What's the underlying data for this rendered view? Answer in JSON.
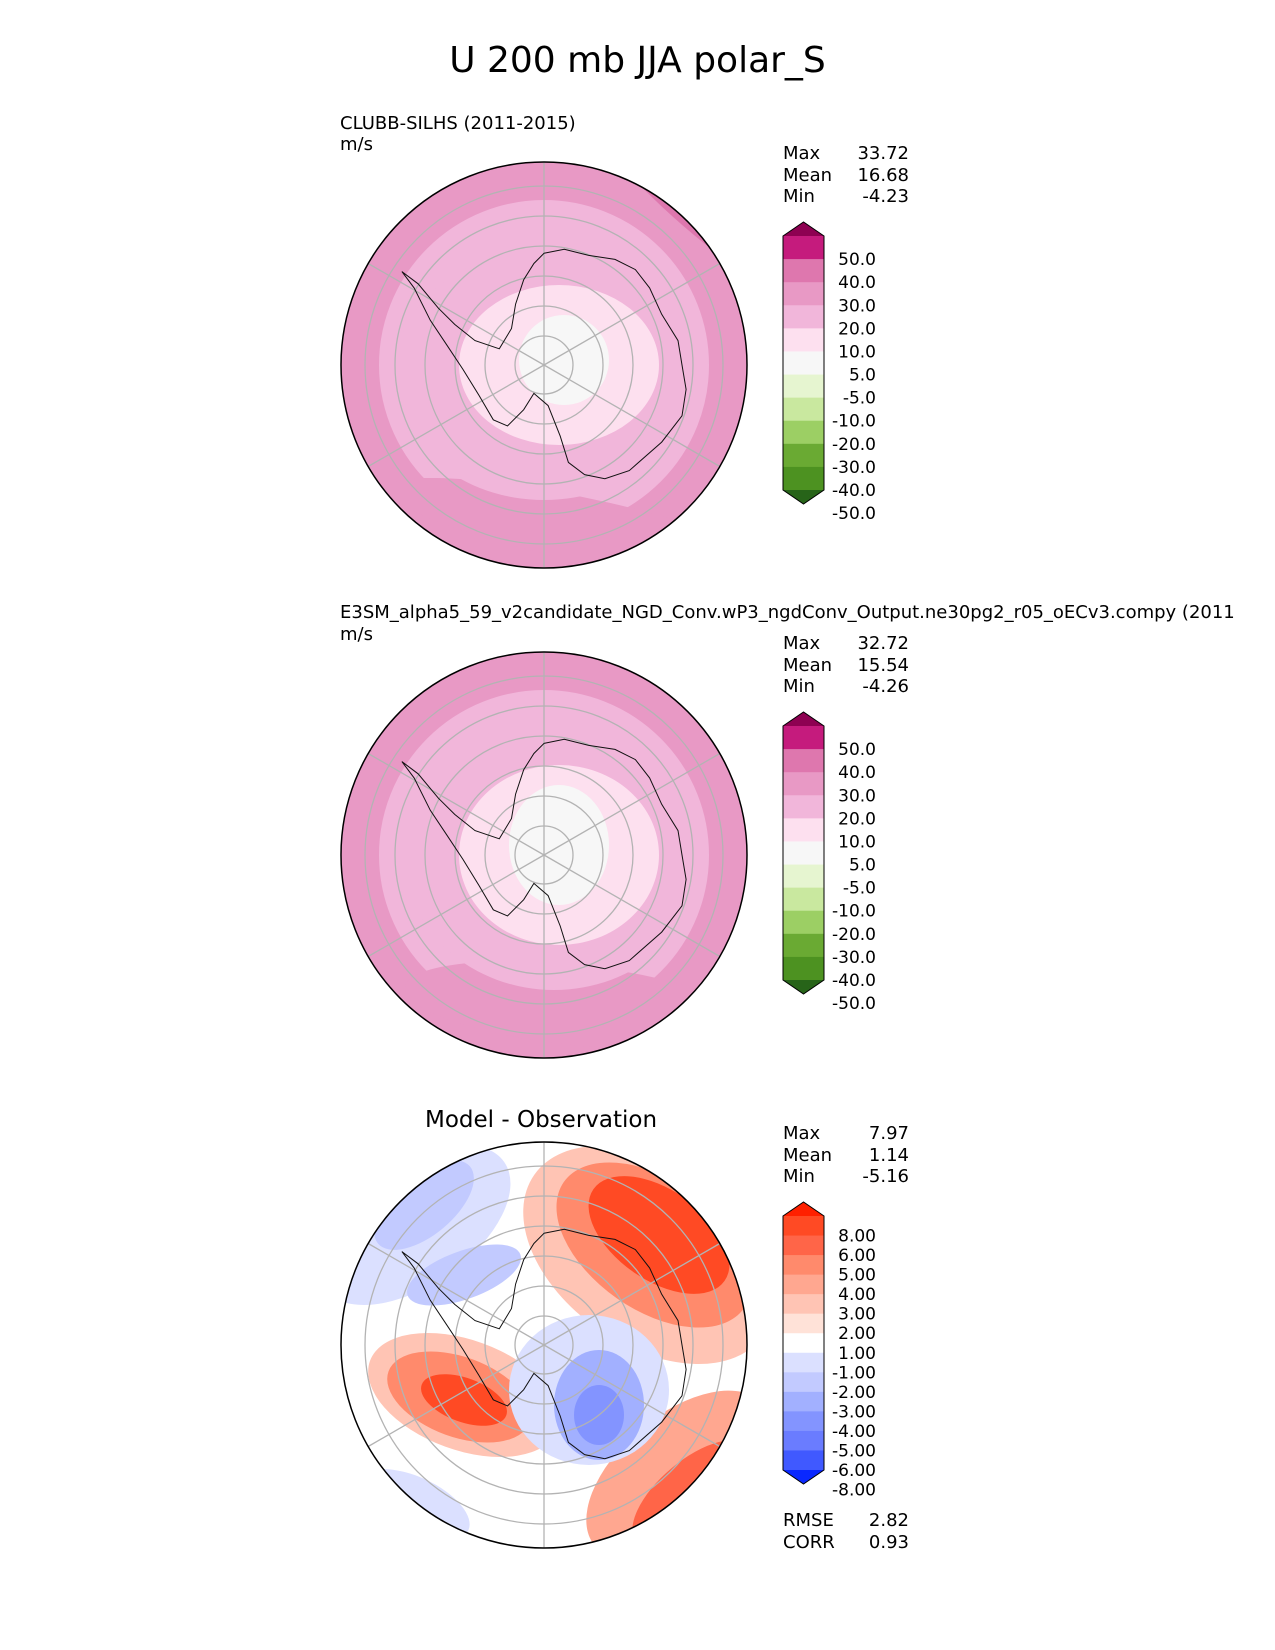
{
  "title": "U 200 mb JJA polar_S",
  "panels": [
    {
      "title": "CLUBB-SILHS (2011-2015)",
      "units": "m/s",
      "stats": [
        {
          "label": "Max",
          "value": "33.72"
        },
        {
          "label": "Mean",
          "value": "16.68"
        },
        {
          "label": "Min",
          "value": "-4.23"
        }
      ],
      "colorbar": "wind"
    },
    {
      "title": "E3SM_alpha5_59_v2candidate_NGD_Conv.wP3_ngdConv_Output.ne30pg2_r05_oECv3.compy (2011",
      "units": "m/s",
      "stats": [
        {
          "label": "Max",
          "value": "32.72"
        },
        {
          "label": "Mean",
          "value": "15.54"
        },
        {
          "label": "Min",
          "value": "-4.26"
        }
      ],
      "colorbar": "wind"
    },
    {
      "title": "Model - Observation",
      "units": "",
      "stats": [
        {
          "label": "Max",
          "value": "7.97"
        },
        {
          "label": "Mean",
          "value": "1.14"
        },
        {
          "label": "Min",
          "value": "-5.16"
        }
      ],
      "colorbar": "diff",
      "extra_stats": [
        {
          "label": "RMSE",
          "value": "2.82"
        },
        {
          "label": "CORR",
          "value": "0.93"
        }
      ]
    }
  ],
  "colorbars": {
    "wind": {
      "labels": [
        "50.0",
        "40.0",
        "30.0",
        "20.0",
        "10.0",
        "5.0",
        "-5.0",
        "-10.0",
        "-20.0",
        "-30.0",
        "-40.0",
        "-50.0"
      ],
      "colors": [
        "#8e0152",
        "#c51b7d",
        "#de77ae",
        "#e899c5",
        "#f1b6da",
        "#fde0ef",
        "#f7f7f7",
        "#e6f5d0",
        "#c9e89f",
        "#9ccf64",
        "#6aaa33",
        "#4d9221",
        "#276419"
      ]
    },
    "diff": {
      "labels": [
        "8.00",
        "6.00",
        "5.00",
        "4.00",
        "3.00",
        "2.00",
        "1.00",
        "-1.00",
        "-2.00",
        "-3.00",
        "-4.00",
        "-5.00",
        "-6.00",
        "-8.00"
      ],
      "colors": [
        "#ff2000",
        "#ff4a24",
        "#ff6548",
        "#ff8a6c",
        "#ffa790",
        "#ffc4b4",
        "#ffe2d8",
        "#ffffff",
        "#dbe0ff",
        "#c2caff",
        "#a2b0ff",
        "#8394ff",
        "#6a7cff",
        "#4059ff",
        "#0a28ff"
      ]
    }
  },
  "chart_data": [
    {
      "type": "heatmap",
      "projection": "south polar stereographic",
      "title": "CLUBB-SILHS (2011-2015)",
      "units": "m/s",
      "levels": [
        -50,
        -40,
        -30,
        -20,
        -10,
        -5,
        5,
        10,
        20,
        30,
        40,
        50
      ],
      "field_summary": {
        "max": 33.72,
        "mean": 16.68,
        "min": -4.23
      }
    },
    {
      "type": "heatmap",
      "projection": "south polar stereographic",
      "title": "E3SM_alpha5_59_v2candidate_NGD_Conv.wP3_ngdConv_Output.ne30pg2_r05_oECv3.compy (2011",
      "units": "m/s",
      "levels": [
        -50,
        -40,
        -30,
        -20,
        -10,
        -5,
        5,
        10,
        20,
        30,
        40,
        50
      ],
      "field_summary": {
        "max": 32.72,
        "mean": 15.54,
        "min": -4.26
      }
    },
    {
      "type": "heatmap",
      "projection": "south polar stereographic",
      "title": "Model - Observation",
      "levels": [
        -8,
        -6,
        -5,
        -4,
        -3,
        -2,
        -1,
        1,
        2,
        3,
        4,
        5,
        6,
        8
      ],
      "field_summary": {
        "max": 7.97,
        "mean": 1.14,
        "min": -5.16,
        "rmse": 2.82,
        "corr": 0.93
      }
    }
  ]
}
